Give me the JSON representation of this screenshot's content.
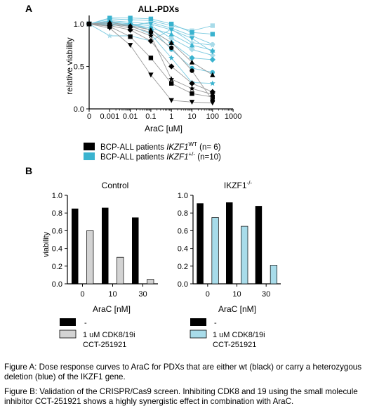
{
  "panels": {
    "a": {
      "letter": "A"
    },
    "b": {
      "letter": "B"
    }
  },
  "legend_a": {
    "wt_prefix": "BCP-ALL patients ",
    "wt_gene": "IKZF1",
    "wt_sup": "WT",
    "wt_n": " (n= 6)",
    "del_prefix": "BCP-ALL patients ",
    "del_gene": "IKZF1",
    "del_sup": "+/-",
    "del_n": " (n=10)"
  },
  "legend_b": {
    "dash": "-",
    "inhibitor_line1": "1 uM  CDK8/19i",
    "inhibitor_line2": "CCT-251921"
  },
  "colors": {
    "wt": "#000000",
    "deletion": "#3ab3cf",
    "deletion_light": "#a8dbe9",
    "bar_gray": "#d3d3d3",
    "bar_blue": "#a8dcea",
    "line_gray": "#9a9a9a",
    "line_blue": "#79c9df"
  },
  "captions": {
    "a": "Figure A: Dose response curves to AraC for PDXs that are either wt (black) or carry a heterozygous deletion (blue) of the IKZF1 gene.",
    "b": "Figure B: Validation of the CRISPR/Cas9 screen. Inhibiting CDK8 and 19 using the small molecule inhibitor CCT-251921 shows a highly synergistic effect in combination with AraC."
  },
  "chart_data": [
    {
      "type": "line",
      "title": "ALL-PDXs",
      "xlabel": "AraC [uM]",
      "ylabel": "relative viability",
      "xscale": "log",
      "x_ticks": [
        "0",
        "0.001",
        "0.01",
        "0.1",
        "1",
        "10",
        "100",
        "1000"
      ],
      "y_ticks": [
        "0.0",
        "0.5",
        "1.0"
      ],
      "ylim": [
        0,
        1.1
      ],
      "x": [
        0,
        0.001,
        0.01,
        0.1,
        1,
        10,
        100
      ],
      "series": [
        {
          "group": "wt",
          "marker": "triangle-down",
          "values": [
            1.0,
            0.95,
            0.75,
            0.4,
            0.1,
            0.08,
            0.07
          ]
        },
        {
          "group": "wt",
          "marker": "square",
          "values": [
            1.0,
            0.97,
            0.85,
            0.6,
            0.3,
            0.18,
            0.14
          ]
        },
        {
          "group": "wt",
          "marker": "diamond",
          "values": [
            1.0,
            0.98,
            0.93,
            0.8,
            0.5,
            0.3,
            0.2
          ]
        },
        {
          "group": "wt",
          "marker": "star",
          "values": [
            1.0,
            1.0,
            0.95,
            0.86,
            0.35,
            0.24,
            0.17
          ]
        },
        {
          "group": "wt",
          "marker": "triangle-up",
          "values": [
            1.0,
            1.02,
            0.98,
            0.93,
            0.78,
            0.55,
            0.4
          ]
        },
        {
          "group": "wt",
          "marker": "circle",
          "values": [
            1.0,
            1.0,
            0.97,
            0.9,
            0.72,
            0.45,
            0.1
          ]
        },
        {
          "group": "deletion",
          "marker": "square",
          "values": [
            1.0,
            1.07,
            1.07,
            1.06,
            1.0,
            0.9,
            0.88
          ]
        },
        {
          "group": "deletion",
          "marker": "circle",
          "values": [
            1.0,
            1.02,
            1.0,
            0.95,
            0.7,
            0.48,
            0.43
          ]
        },
        {
          "group": "deletion",
          "marker": "star",
          "values": [
            1.0,
            0.99,
            0.98,
            0.88,
            0.6,
            0.31,
            0.3
          ]
        },
        {
          "group": "deletion",
          "marker": "diamond",
          "values": [
            1.0,
            1.03,
            1.0,
            0.93,
            0.78,
            0.6,
            0.58
          ]
        },
        {
          "group": "deletion",
          "marker": "triangle-up",
          "values": [
            1.0,
            1.01,
            0.99,
            0.95,
            0.88,
            0.75,
            0.69
          ]
        },
        {
          "group": "deletion",
          "marker": "triangle-down",
          "values": [
            1.0,
            1.04,
            1.02,
            1.0,
            0.93,
            0.83,
            0.67
          ]
        },
        {
          "group": "deletion_light",
          "marker": "square",
          "values": [
            1.0,
            1.06,
            1.05,
            1.04,
            0.98,
            0.92,
            0.98
          ]
        },
        {
          "group": "deletion_light",
          "marker": "circle",
          "values": [
            1.0,
            1.0,
            0.98,
            1.02,
            0.95,
            0.86,
            0.76
          ]
        },
        {
          "group": "deletion_light",
          "marker": "star",
          "values": [
            1.0,
            0.86,
            0.86,
            0.8,
            0.94,
            0.78,
            0.75
          ]
        },
        {
          "group": "deletion_light",
          "marker": "diamond",
          "values": [
            1.0,
            0.98,
            1.0,
            0.98,
            0.83,
            0.7,
            0.63
          ]
        }
      ]
    },
    {
      "type": "bar",
      "title": "Control",
      "xlabel": "AraC [nM]",
      "ylabel": "viability",
      "categories": [
        "0",
        "10",
        "30"
      ],
      "y_ticks": [
        "0.0",
        "0.2",
        "0.4",
        "0.6",
        "0.8",
        "1.0"
      ],
      "ylim": [
        0,
        1.0
      ],
      "series": [
        {
          "name": "-",
          "values": [
            0.85,
            0.86,
            0.75
          ]
        },
        {
          "name": "1 uM  CDK8/19i CCT-251921",
          "values": [
            0.6,
            0.3,
            0.05
          ]
        }
      ]
    },
    {
      "type": "bar",
      "title": "IKZF1-/-",
      "title_base": "IKZF1",
      "title_sup": "-/-",
      "xlabel": "AraC [nM]",
      "categories": [
        "0",
        "10",
        "30"
      ],
      "y_ticks": [
        "0.0",
        "0.2",
        "0.4",
        "0.6",
        "0.8",
        "1.0"
      ],
      "ylim": [
        0,
        1.0
      ],
      "series": [
        {
          "name": "-",
          "values": [
            0.91,
            0.92,
            0.88
          ]
        },
        {
          "name": "1 uM  CDK8/19i CCT-251921",
          "values": [
            0.75,
            0.65,
            0.21
          ]
        }
      ]
    }
  ]
}
